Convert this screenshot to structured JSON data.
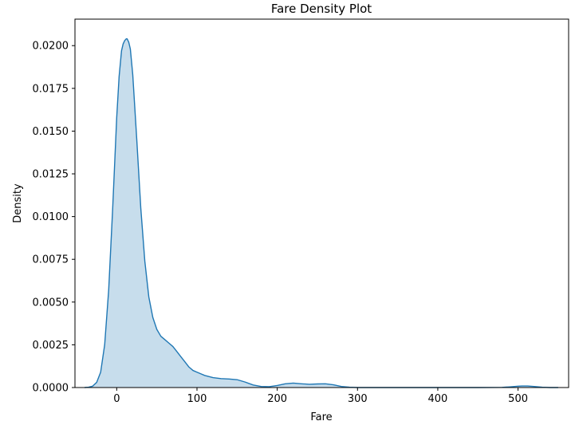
{
  "chart_data": {
    "type": "area",
    "title": "Fare Density Plot",
    "xlabel": "Fare",
    "ylabel": "Density",
    "xlim": [
      -52,
      563
    ],
    "ylim": [
      0,
      0.02155
    ],
    "x_ticks": [
      0,
      100,
      200,
      300,
      400,
      500
    ],
    "y_ticks": [
      0.0,
      0.0025,
      0.005,
      0.0075,
      0.01,
      0.0125,
      0.015,
      0.0175,
      0.02
    ],
    "x_tick_labels": [
      "0",
      "100",
      "200",
      "300",
      "400",
      "500"
    ],
    "y_tick_labels": [
      "0.0000",
      "0.0025",
      "0.0050",
      "0.0075",
      "0.0100",
      "0.0125",
      "0.0150",
      "0.0175",
      "0.0200"
    ],
    "grid": false,
    "legend": "none",
    "line_color": "#1f77b4",
    "fill_color": "#1f77b4",
    "fill_opacity": 0.25,
    "series": [
      {
        "x": [
          -40,
          -35,
          -30,
          -25,
          -20,
          -15,
          -10,
          -5,
          0,
          3,
          6,
          8,
          10,
          12,
          13,
          15,
          17,
          20,
          25,
          30,
          35,
          40,
          45,
          50,
          55,
          60,
          65,
          70,
          75,
          80,
          85,
          90,
          95,
          100,
          110,
          120,
          130,
          140,
          150,
          160,
          170,
          180,
          190,
          200,
          210,
          220,
          230,
          240,
          250,
          260,
          270,
          280,
          290,
          300,
          350,
          400,
          450,
          480,
          490,
          500,
          505,
          512,
          520,
          530,
          540,
          550
        ],
        "y": [
          0.0,
          2e-05,
          8e-05,
          0.0003,
          0.0009,
          0.0025,
          0.0057,
          0.0105,
          0.0158,
          0.0182,
          0.0197,
          0.0201,
          0.0203,
          0.0204,
          0.0204,
          0.0202,
          0.0198,
          0.0183,
          0.0145,
          0.0105,
          0.0074,
          0.0053,
          0.0041,
          0.0034,
          0.003,
          0.0028,
          0.0026,
          0.0024,
          0.0021,
          0.0018,
          0.0015,
          0.0012,
          0.001,
          0.0009,
          0.0007,
          0.00058,
          0.00052,
          0.0005,
          0.00046,
          0.00032,
          0.00015,
          6e-05,
          5e-05,
          0.00012,
          0.00022,
          0.00026,
          0.00022,
          0.00019,
          0.00021,
          0.00022,
          0.00016,
          6e-05,
          2e-05,
          0.0,
          0.0,
          0.0,
          0.0,
          1e-05,
          4e-05,
          8e-05,
          9e-05,
          9e-05,
          6e-05,
          2e-05,
          0.0,
          0.0
        ]
      }
    ]
  }
}
